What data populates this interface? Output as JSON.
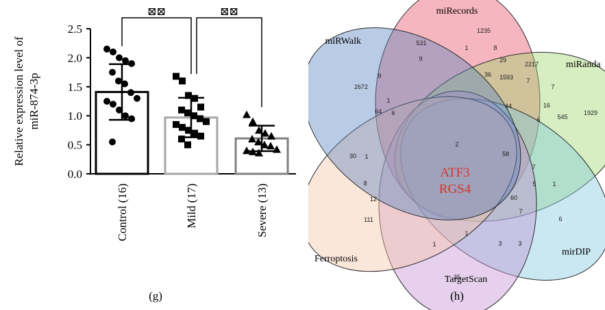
{
  "panels": {
    "g": {
      "label": "(g)"
    },
    "h": {
      "label": "(h)"
    }
  },
  "chart_data": [
    {
      "type": "bar",
      "panel": "(g)",
      "ylabel_line1": "Relative expression level of",
      "ylabel_line2": "miR-874-3p",
      "ylim": [
        0,
        2.5
      ],
      "yticks": [
        "0.0",
        "0.5",
        "1.0",
        "1.5",
        "2.0",
        "2.5"
      ],
      "categories": [
        "Control (16)",
        "Mild (17)",
        "Severe (13)"
      ],
      "values": [
        1.41,
        0.97,
        0.61
      ],
      "error": [
        [
          0.93,
          1.89
        ],
        [
          0.63,
          1.31
        ],
        [
          0.39,
          0.83
        ]
      ],
      "bar_colors": [
        "#000000",
        "#a6a6a6",
        "#808080"
      ],
      "marker_shapes": [
        "circle",
        "square",
        "triangle"
      ],
      "points": [
        [
          2.15,
          2.1,
          2.0,
          1.95,
          1.9,
          1.75,
          1.6,
          1.55,
          1.4,
          1.3,
          1.25,
          1.2,
          1.1,
          1.0,
          0.95,
          0.55
        ],
        [
          1.68,
          1.6,
          1.35,
          1.3,
          1.15,
          1.1,
          1.05,
          1.0,
          0.95,
          0.9,
          0.85,
          0.8,
          0.75,
          0.7,
          0.65,
          0.6,
          0.5
        ],
        [
          1.02,
          0.9,
          0.75,
          0.7,
          0.65,
          0.6,
          0.55,
          0.5,
          0.48,
          0.42,
          0.4,
          0.38,
          0.36
        ]
      ],
      "significance": [
        "⊠⊠",
        "⊠⊠"
      ]
    },
    {
      "type": "venn",
      "panel": "(h)",
      "sets": [
        {
          "name": "miRecords",
          "color": "#e8506a"
        },
        {
          "name": "miRanda",
          "color": "#9ed66b"
        },
        {
          "name": "mirDIP",
          "color": "#7ec9dd"
        },
        {
          "name": "TargetScan",
          "color": "#c58fd4"
        },
        {
          "name": "Ferroptosis",
          "color": "#f6c3a8"
        },
        {
          "name": "miRWalk",
          "color": "#5b86c2"
        }
      ],
      "center_genes": [
        "ATF3",
        "RGS4"
      ],
      "counts": [
        "1235",
        "531",
        "1",
        "8",
        "9",
        "29",
        "2217",
        "36",
        "1593",
        "9",
        "2672",
        "1",
        "7",
        "7",
        "64",
        "6",
        "1929",
        "44",
        "16",
        "545",
        "6",
        "2",
        "30",
        "1",
        "58",
        "8",
        "7",
        "5",
        "1",
        "12",
        "60",
        "111",
        "7",
        "6",
        "1",
        "3",
        "3",
        "1",
        "35"
      ]
    }
  ]
}
